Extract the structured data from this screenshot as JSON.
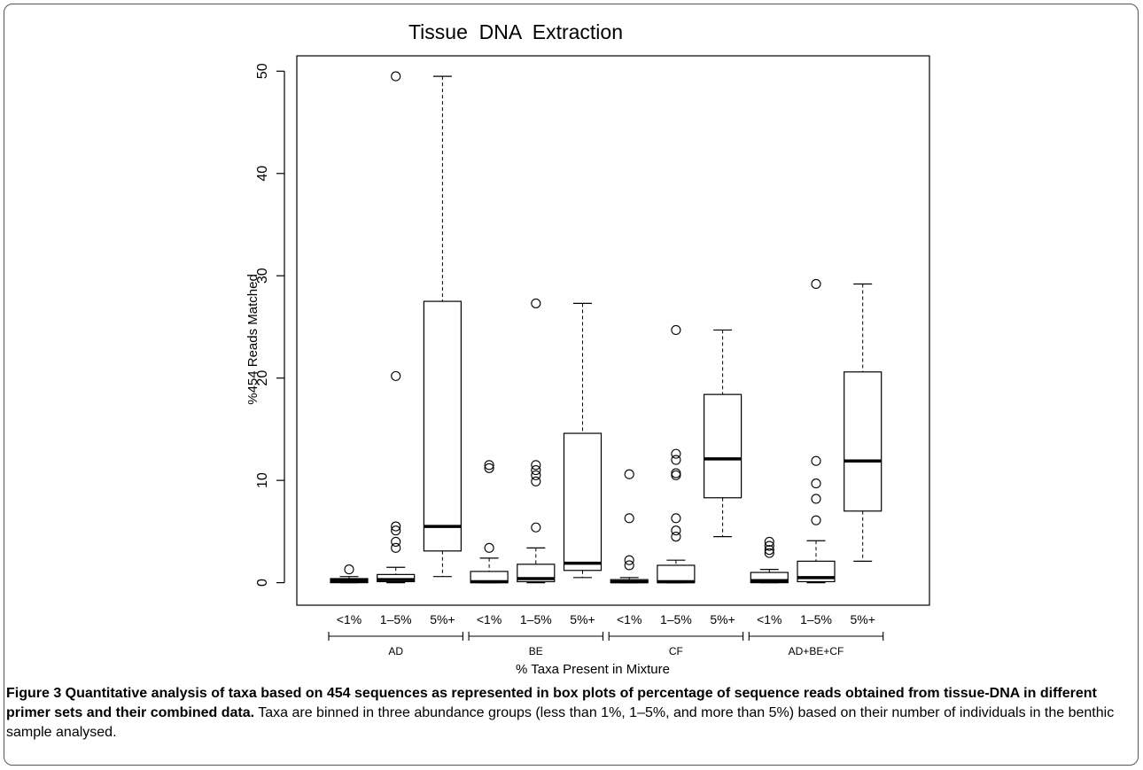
{
  "chart_data": {
    "type": "boxplot",
    "title": "Tissue  DNA  Extraction",
    "xlabel": "% Taxa Present in Mixture",
    "ylabel": "%454 Reads Matched",
    "ylim": [
      -2.2,
      51.5
    ],
    "yticks": [
      0,
      10,
      20,
      30,
      40,
      50
    ],
    "yticklabels": [
      "0",
      "10",
      "20",
      "30",
      "40",
      "50"
    ],
    "groups": [
      {
        "name": "AD",
        "boxes": [
          {
            "label": "<1%",
            "min": 0,
            "q1": 0,
            "median": 0.2,
            "q3": 0.4,
            "max": 0.6,
            "outliers": [
              1.3
            ]
          },
          {
            "label": "1–5%",
            "min": 0,
            "q1": 0.1,
            "median": 0.3,
            "q3": 0.8,
            "max": 1.5,
            "outliers": [
              3.4,
              4.0,
              5.1,
              5.5,
              20.2,
              49.5
            ]
          },
          {
            "label": "5%+",
            "min": 0.6,
            "q1": 3.1,
            "median": 5.5,
            "q3": 27.5,
            "max": 49.5,
            "outliers": []
          }
        ]
      },
      {
        "name": "BE",
        "boxes": [
          {
            "label": "<1%",
            "min": 0,
            "q1": 0,
            "median": 0.1,
            "q3": 1.1,
            "max": 2.4,
            "outliers": [
              3.4,
              11.2,
              11.5
            ]
          },
          {
            "label": "1–5%",
            "min": 0,
            "q1": 0.1,
            "median": 0.4,
            "q3": 1.8,
            "max": 3.4,
            "outliers": [
              5.4,
              9.9,
              10.5,
              11.0,
              11.5,
              27.3
            ]
          },
          {
            "label": "5%+",
            "min": 0.5,
            "q1": 1.2,
            "median": 1.9,
            "q3": 14.6,
            "max": 27.3,
            "outliers": []
          }
        ]
      },
      {
        "name": "CF",
        "boxes": [
          {
            "label": "<1%",
            "min": 0,
            "q1": 0,
            "median": 0.1,
            "q3": 0.3,
            "max": 0.5,
            "outliers": [
              1.7,
              2.2,
              6.3,
              10.6
            ]
          },
          {
            "label": "1–5%",
            "min": 0,
            "q1": 0,
            "median": 0.1,
            "q3": 1.7,
            "max": 2.2,
            "outliers": [
              4.5,
              5.1,
              6.3,
              10.5,
              10.7,
              12.0,
              12.6,
              24.7
            ]
          },
          {
            "label": "5%+",
            "min": 4.5,
            "q1": 8.3,
            "median": 12.1,
            "q3": 18.4,
            "max": 24.7,
            "outliers": []
          }
        ]
      },
      {
        "name": "AD+BE+CF",
        "boxes": [
          {
            "label": "<1%",
            "min": 0,
            "q1": 0,
            "median": 0.2,
            "q3": 1.0,
            "max": 1.3,
            "outliers": [
              2.9,
              3.2,
              3.6,
              4.0
            ]
          },
          {
            "label": "1–5%",
            "min": 0,
            "q1": 0.1,
            "median": 0.5,
            "q3": 2.1,
            "max": 4.1,
            "outliers": [
              6.1,
              8.2,
              9.7,
              11.9,
              29.2
            ]
          },
          {
            "label": "5%+",
            "min": 2.1,
            "q1": 7.0,
            "median": 11.9,
            "q3": 20.6,
            "max": 29.2,
            "outliers": []
          }
        ]
      }
    ]
  },
  "caption": {
    "label": "Figure 3 Quantitative analysis of taxa based on 454 sequences as represented in box plots of percentage of sequence reads obtained from tissue-DNA in different primer sets and their combined data.",
    "text": " Taxa are binned in three abundance groups (less than 1%, 1–5%, and more than 5%) based on their number of individuals in the benthic sample analysed."
  }
}
